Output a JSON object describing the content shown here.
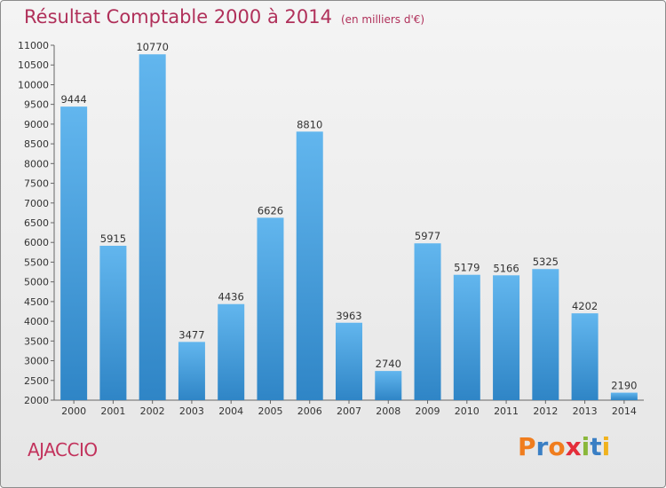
{
  "header": {
    "title": "Résultat Comptable 2000 à 2014",
    "subtitle": "(en milliers d'€)"
  },
  "footer": {
    "city": "AJACCIO",
    "logo_letters": [
      "P",
      "r",
      "o",
      "x",
      "i",
      "t",
      "i"
    ],
    "logo_colors": [
      "#f07d1e",
      "#3a7fc4",
      "#f07d1e",
      "#e42d3a",
      "#8ab73a",
      "#3a7fc4",
      "#f0b21e"
    ]
  },
  "colors": {
    "bar_top": "#62b6ee",
    "bar_bottom": "#2f85c6",
    "title": "#b0305a"
  },
  "chart_data": {
    "type": "bar",
    "title": "Résultat Comptable 2000 à 2014",
    "subtitle": "(en milliers d'€)",
    "categories": [
      "2000",
      "2001",
      "2002",
      "2003",
      "2004",
      "2005",
      "2006",
      "2007",
      "2008",
      "2009",
      "2010",
      "2011",
      "2012",
      "2013",
      "2014"
    ],
    "values": [
      9444,
      5915,
      10770,
      3477,
      4436,
      6626,
      8810,
      3963,
      2740,
      5977,
      5179,
      5166,
      5325,
      4202,
      2190
    ],
    "ylim": [
      2000,
      11000
    ],
    "yticks": [
      2000,
      2500,
      3000,
      3500,
      4000,
      4500,
      5000,
      5500,
      6000,
      6500,
      7000,
      7500,
      8000,
      8500,
      9000,
      9500,
      10000,
      10500,
      11000
    ],
    "grid": false,
    "legend": "none"
  }
}
